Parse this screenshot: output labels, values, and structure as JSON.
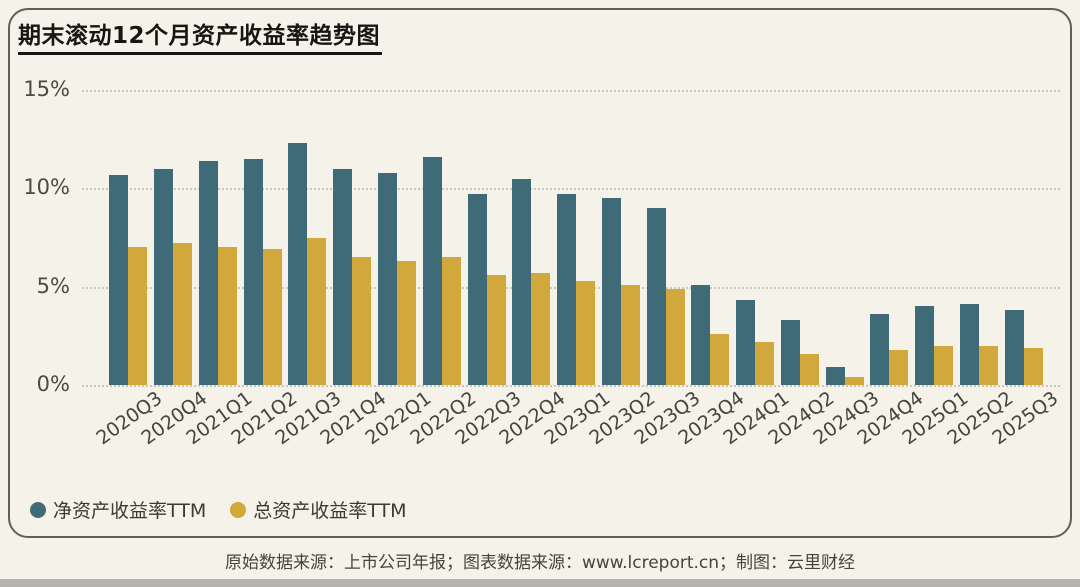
{
  "page": {
    "title": "期末滚动12个月资产收益率趋势图",
    "footer_note": "原始数据来源：上市公司年报；图表数据来源：www.lcreport.cn；制图：云里财经"
  },
  "chart_data": {
    "type": "bar",
    "title": "期末滚动12个月资产收益率趋势图",
    "categories": [
      "2020Q3",
      "2020Q4",
      "2021Q1",
      "2021Q2",
      "2021Q3",
      "2021Q4",
      "2022Q1",
      "2022Q2",
      "2022Q3",
      "2022Q4",
      "2023Q1",
      "2023Q2",
      "2023Q3",
      "2023Q4",
      "2024Q1",
      "2024Q2",
      "2024Q3",
      "2024Q4",
      "2025Q1",
      "2025Q2",
      "2025Q3"
    ],
    "series": [
      {
        "name": "净资产收益率TTM",
        "color": "#3e6b77",
        "values": [
          10.7,
          11.0,
          11.4,
          11.5,
          12.3,
          11.0,
          10.8,
          11.6,
          9.7,
          10.5,
          9.7,
          9.5,
          9.0,
          5.1,
          4.3,
          3.3,
          0.9,
          3.6,
          4.0,
          4.1,
          3.8
        ]
      },
      {
        "name": "总资产收益率TTM",
        "color": "#d1a83c",
        "values": [
          7.0,
          7.2,
          7.0,
          6.9,
          7.5,
          6.5,
          6.3,
          6.5,
          5.6,
          5.7,
          5.3,
          5.1,
          4.9,
          2.6,
          2.2,
          1.6,
          0.4,
          1.8,
          2.0,
          2.0,
          1.9
        ]
      }
    ],
    "unit": "%",
    "ylim": [
      0,
      15
    ],
    "y_ticks": [
      "15%",
      "10%",
      "5%",
      "0%"
    ],
    "grid": "dotted-horizontal",
    "legend_position": "bottom-left"
  },
  "colors": {
    "background": "#f4f2e9",
    "card_border": "#605f58",
    "gridline": "#c9c6bb",
    "axis_label": "#4b4a43",
    "title_text": "#161612",
    "footer_text": "#45443d",
    "bottom_strip": "#b4b2aa",
    "series_teal": "#3e6b77",
    "series_gold": "#d1a83c"
  }
}
